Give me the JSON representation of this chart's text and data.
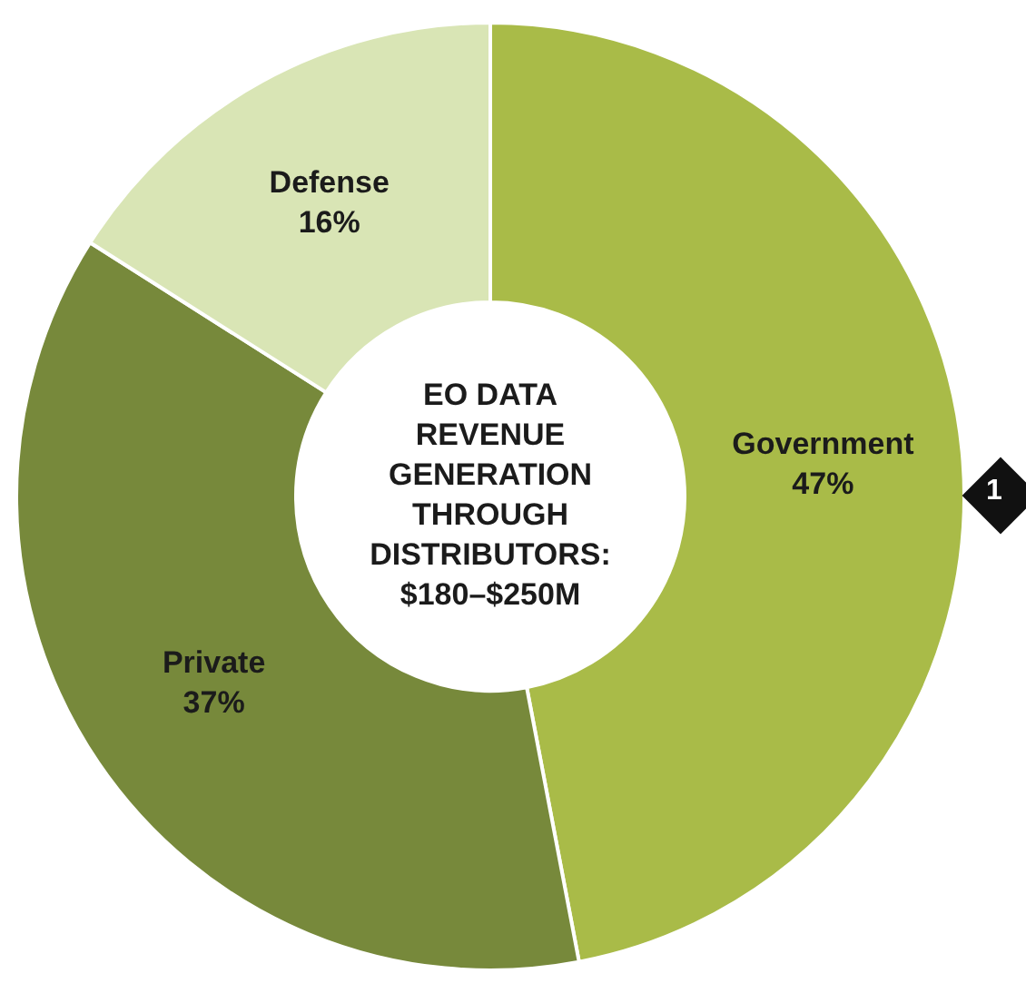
{
  "chart_data": {
    "type": "donut",
    "title": "EO DATA REVENUE GENERATION THROUGH DISTRIBUTORS: $180–$250M",
    "categories": [
      "Government",
      "Private",
      "Defense"
    ],
    "values": [
      47,
      37,
      16
    ],
    "value_labels": [
      "47%",
      "37%",
      "16%"
    ],
    "colors": [
      "#a9bb48",
      "#77893b",
      "#d9e5b5"
    ],
    "legend": false,
    "annotations": [
      "1"
    ]
  }
}
